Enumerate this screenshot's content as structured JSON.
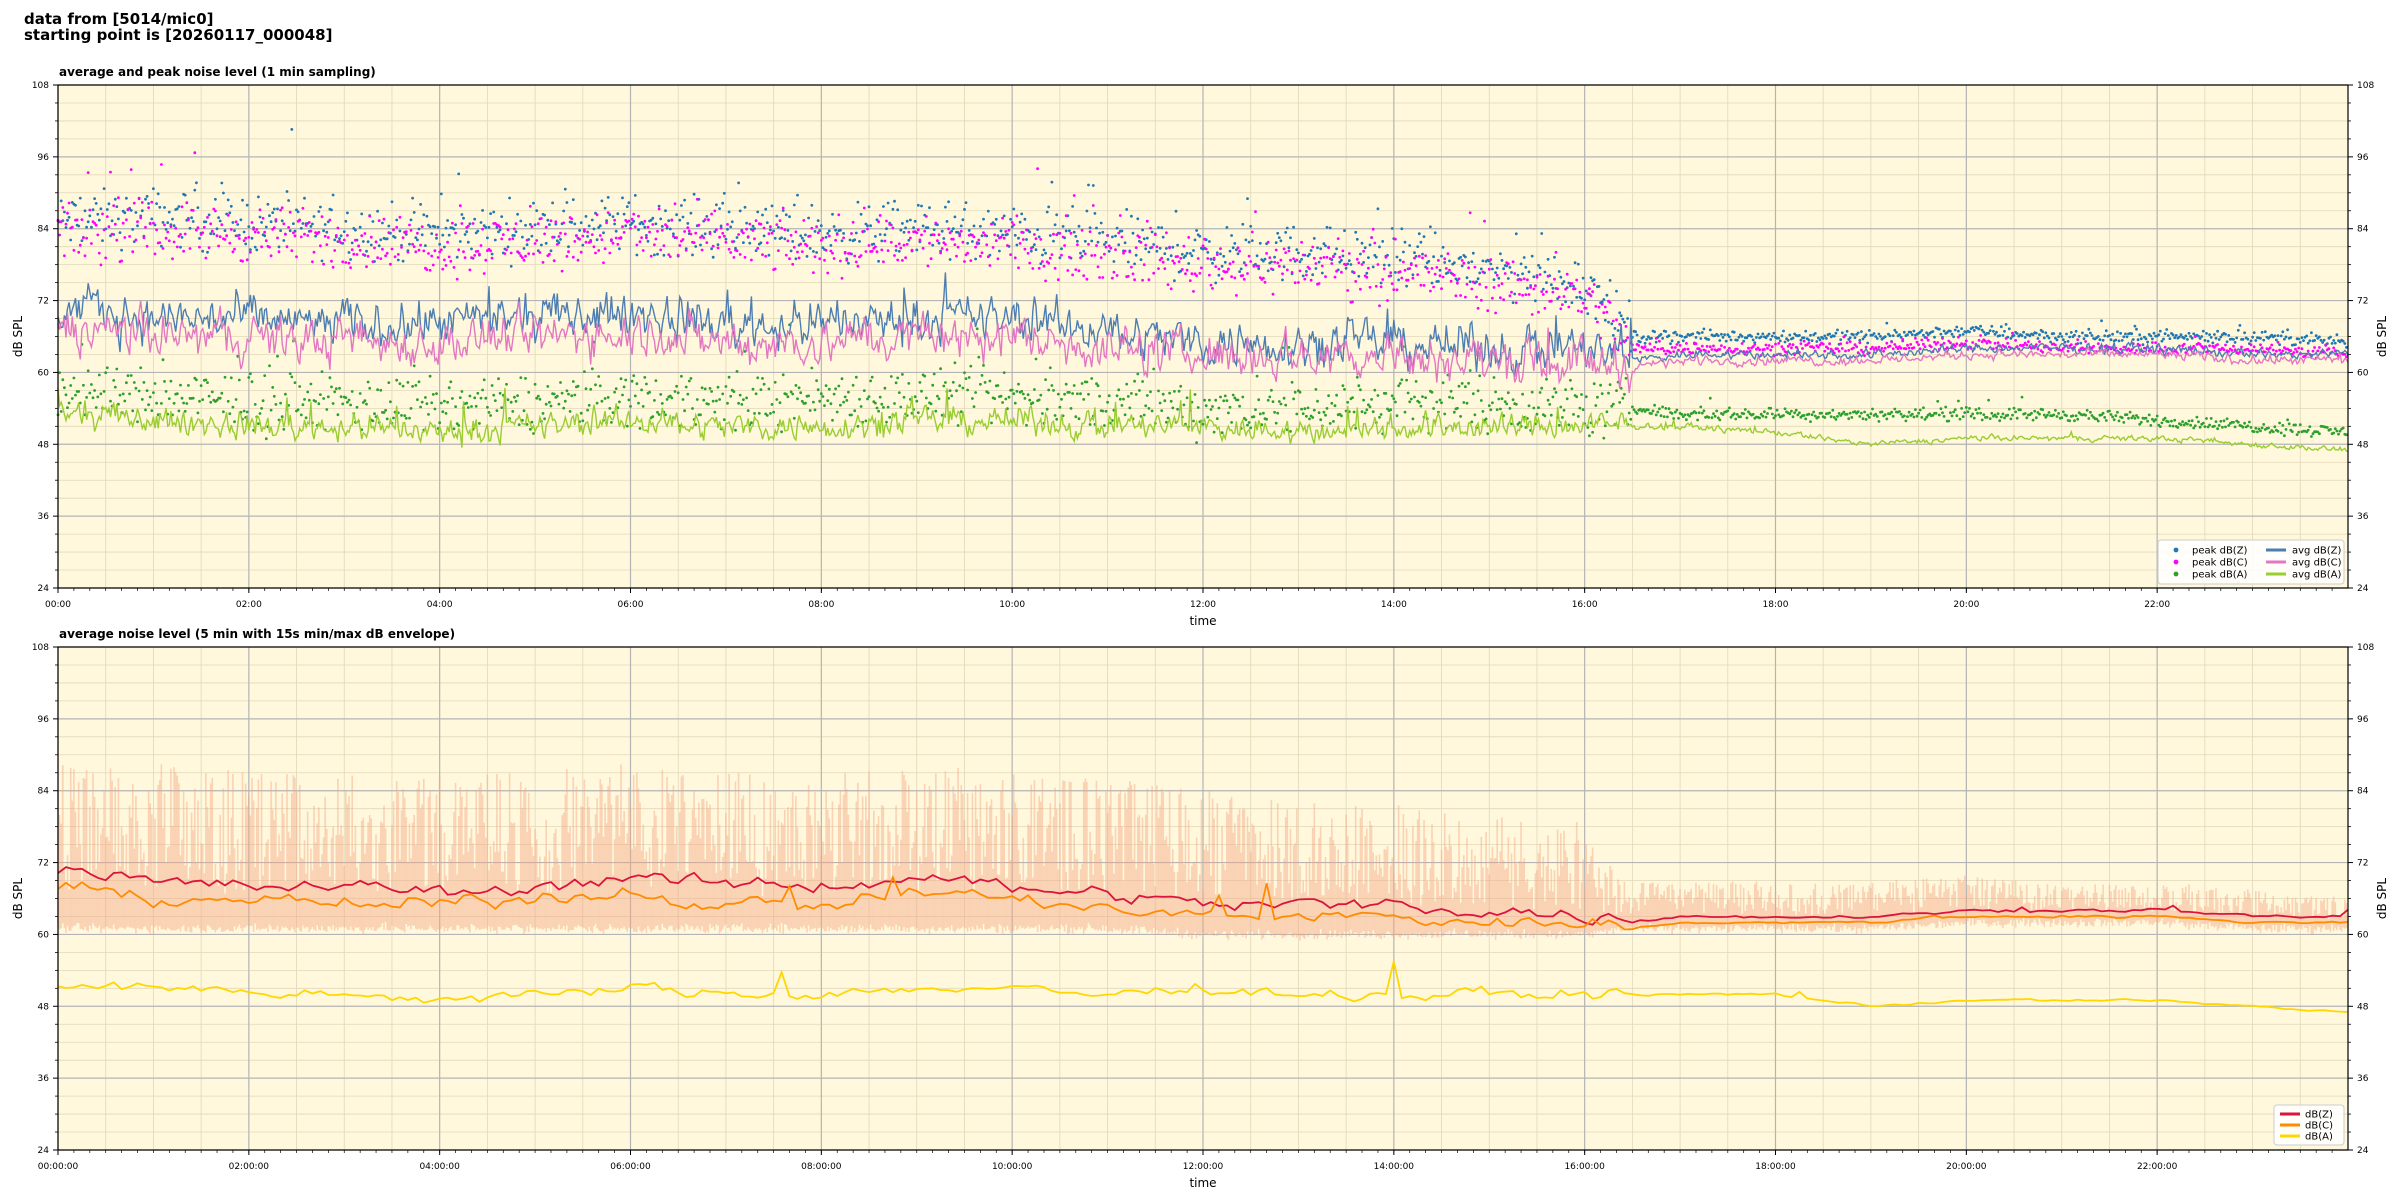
{
  "header": {
    "line1": "data from [5014/mic0]",
    "line2": "starting point is [20260117_000048]"
  },
  "colors": {
    "plot_bg": "#fff8dc",
    "peak_z": "#1f77b4",
    "peak_c": "#ff00ff",
    "peak_a": "#2ca02c",
    "avg_z": "#4d7eb3",
    "avg_c": "#e377c2",
    "avg_a": "#9acd32",
    "dbz": "#dc143c",
    "dbc": "#ff8c00",
    "dba": "#ffd700",
    "envelope": "#f4a582"
  },
  "chart_data": [
    {
      "type": "line",
      "title": "average and peak noise level (1 min sampling)",
      "xlabel": "time",
      "ylabel": "dB SPL",
      "xlim": [
        0,
        24
      ],
      "ylim": [
        24,
        108
      ],
      "yticks": [
        "24",
        "36",
        "48",
        "60",
        "72",
        "84",
        "96",
        "108"
      ],
      "xticks": [
        "00:00",
        "02:00",
        "04:00",
        "06:00",
        "08:00",
        "10:00",
        "12:00",
        "14:00",
        "16:00",
        "18:00",
        "20:00",
        "22:00"
      ],
      "grid": true,
      "legend": "lower-right",
      "series": [
        {
          "name": "peak dB(Z)",
          "kind": "scatter",
          "x": [
            0,
            1,
            2,
            3,
            4,
            5,
            6,
            7,
            8,
            9,
            10,
            11,
            12,
            13,
            14,
            15,
            16,
            16.5,
            17,
            18,
            19,
            20,
            21,
            22,
            23,
            24
          ],
          "values": [
            85,
            86,
            85,
            84,
            83,
            84,
            85,
            84,
            83,
            84,
            83,
            82,
            80,
            80,
            79,
            77,
            75,
            66,
            66,
            66,
            66,
            67,
            66,
            66,
            66,
            65
          ]
        },
        {
          "name": "peak dB(C)",
          "kind": "scatter",
          "x": [
            0,
            1,
            2,
            3,
            4,
            5,
            6,
            7,
            8,
            9,
            10,
            11,
            12,
            13,
            14,
            15,
            16,
            16.5,
            17,
            18,
            19,
            20,
            21,
            22,
            23,
            24
          ],
          "values": [
            83,
            84,
            83,
            82,
            81,
            82,
            83,
            82,
            81,
            82,
            81,
            80,
            78,
            78,
            77,
            75,
            73,
            64,
            64,
            64,
            64,
            65,
            64,
            64,
            64,
            63
          ]
        },
        {
          "name": "peak dB(A)",
          "kind": "scatter",
          "x": [
            0,
            1,
            2,
            3,
            4,
            5,
            6,
            7,
            8,
            9,
            10,
            11,
            12,
            13,
            14,
            15,
            16,
            16.5,
            17,
            18,
            19,
            20,
            21,
            22,
            23,
            24
          ],
          "values": [
            57,
            56,
            55,
            55,
            54,
            55,
            56,
            55,
            56,
            56,
            56,
            55,
            54,
            54,
            55,
            55,
            54,
            54,
            53,
            53,
            53,
            53,
            53,
            52,
            51,
            50
          ]
        },
        {
          "name": "avg dB(Z)",
          "kind": "line",
          "x": [
            0,
            1,
            2,
            3,
            4,
            5,
            6,
            7,
            8,
            9,
            10,
            11,
            12,
            13,
            14,
            15,
            16,
            16.5,
            17,
            18,
            19,
            20,
            21,
            22,
            23,
            24
          ],
          "values": [
            71,
            69,
            69,
            68,
            68,
            69,
            70,
            68,
            68,
            69,
            69,
            67,
            65,
            65,
            65,
            64,
            64,
            62,
            63,
            63,
            63,
            64,
            64,
            64,
            63,
            63
          ]
        },
        {
          "name": "avg dB(C)",
          "kind": "line",
          "x": [
            0,
            1,
            2,
            3,
            4,
            5,
            6,
            7,
            8,
            9,
            10,
            11,
            12,
            13,
            14,
            15,
            16,
            16.5,
            17,
            18,
            19,
            20,
            21,
            22,
            23,
            24
          ],
          "values": [
            68,
            66,
            66,
            65,
            65,
            66,
            67,
            65,
            65,
            66,
            66,
            64,
            63,
            63,
            63,
            62,
            62,
            61,
            62,
            62,
            62,
            63,
            63,
            63,
            62,
            62
          ]
        },
        {
          "name": "avg dB(A)",
          "kind": "line",
          "x": [
            0,
            1,
            2,
            3,
            4,
            5,
            6,
            7,
            8,
            9,
            10,
            11,
            12,
            13,
            14,
            15,
            16,
            16.5,
            17,
            18,
            19,
            20,
            21,
            22,
            23,
            24
          ],
          "values": [
            53,
            52,
            51,
            51,
            50,
            51,
            52,
            51,
            51,
            52,
            52,
            51,
            51,
            50,
            51,
            51,
            51,
            51,
            51,
            50,
            48,
            49,
            49,
            49,
            48,
            47
          ]
        }
      ]
    },
    {
      "type": "line",
      "title": "average noise level (5 min with 15s min/max dB envelope)",
      "xlabel": "time",
      "ylabel": "dB SPL",
      "xlim": [
        0,
        24
      ],
      "ylim": [
        24,
        108
      ],
      "yticks": [
        "24",
        "36",
        "48",
        "60",
        "72",
        "84",
        "96",
        "108"
      ],
      "xticks": [
        "00:00:00",
        "02:00:00",
        "04:00:00",
        "06:00:00",
        "08:00:00",
        "10:00:00",
        "12:00:00",
        "14:00:00",
        "16:00:00",
        "18:00:00",
        "20:00:00",
        "22:00:00"
      ],
      "grid": true,
      "legend": "lower-right",
      "envelope": {
        "x": [
          0,
          1,
          2,
          3,
          4,
          5,
          6,
          7,
          8,
          9,
          10,
          11,
          12,
          13,
          14,
          15,
          16,
          16.5,
          17,
          18,
          19,
          20,
          21,
          22,
          23,
          24
        ],
        "min": [
          61,
          61,
          61,
          61,
          61,
          61,
          61,
          61,
          61,
          61,
          61,
          61,
          60,
          60,
          60,
          60,
          60,
          61,
          61,
          61,
          61,
          62,
          62,
          62,
          61,
          61
        ],
        "max": [
          86,
          86,
          85,
          85,
          84,
          85,
          86,
          85,
          85,
          86,
          85,
          84,
          82,
          80,
          80,
          78,
          77,
          67,
          67,
          67,
          67,
          68,
          67,
          67,
          66,
          65
        ]
      },
      "series": [
        {
          "name": "dB(Z)",
          "kind": "line",
          "x": [
            0,
            1,
            2,
            3,
            4,
            5,
            6,
            7,
            8,
            9,
            10,
            11,
            12,
            13,
            14,
            15,
            16,
            16.5,
            17,
            18,
            19,
            20,
            21,
            22,
            23,
            24
          ],
          "values": [
            71,
            69,
            68,
            68,
            67,
            68,
            70,
            68,
            68,
            70,
            68,
            67,
            65,
            65,
            65,
            64,
            63,
            62,
            63,
            63,
            63,
            64,
            64,
            64,
            63,
            63
          ]
        },
        {
          "name": "dB(C)",
          "kind": "line",
          "x": [
            0,
            1,
            2,
            3,
            4,
            5,
            6,
            7,
            8,
            9,
            10,
            11,
            12,
            13,
            14,
            15,
            16,
            16.5,
            17,
            18,
            19,
            20,
            21,
            22,
            23,
            24
          ],
          "values": [
            68,
            66,
            66,
            65,
            65,
            66,
            67,
            65,
            65,
            67,
            66,
            64,
            63,
            63,
            63,
            62,
            62,
            61,
            62,
            62,
            62,
            63,
            63,
            63,
            62,
            62
          ]
        },
        {
          "name": "dB(A)",
          "kind": "line",
          "x": [
            0,
            1,
            2,
            3,
            4,
            5,
            6,
            7,
            8,
            9,
            10,
            11,
            12,
            13,
            14,
            15,
            16,
            16.5,
            17,
            18,
            19,
            20,
            21,
            22,
            23,
            24
          ],
          "values": [
            52,
            51,
            50,
            50,
            49,
            50,
            51,
            50,
            50,
            51,
            51,
            50,
            51,
            50,
            50,
            50,
            50,
            50,
            50,
            50,
            48,
            49,
            49,
            49,
            48,
            47
          ]
        }
      ]
    }
  ]
}
